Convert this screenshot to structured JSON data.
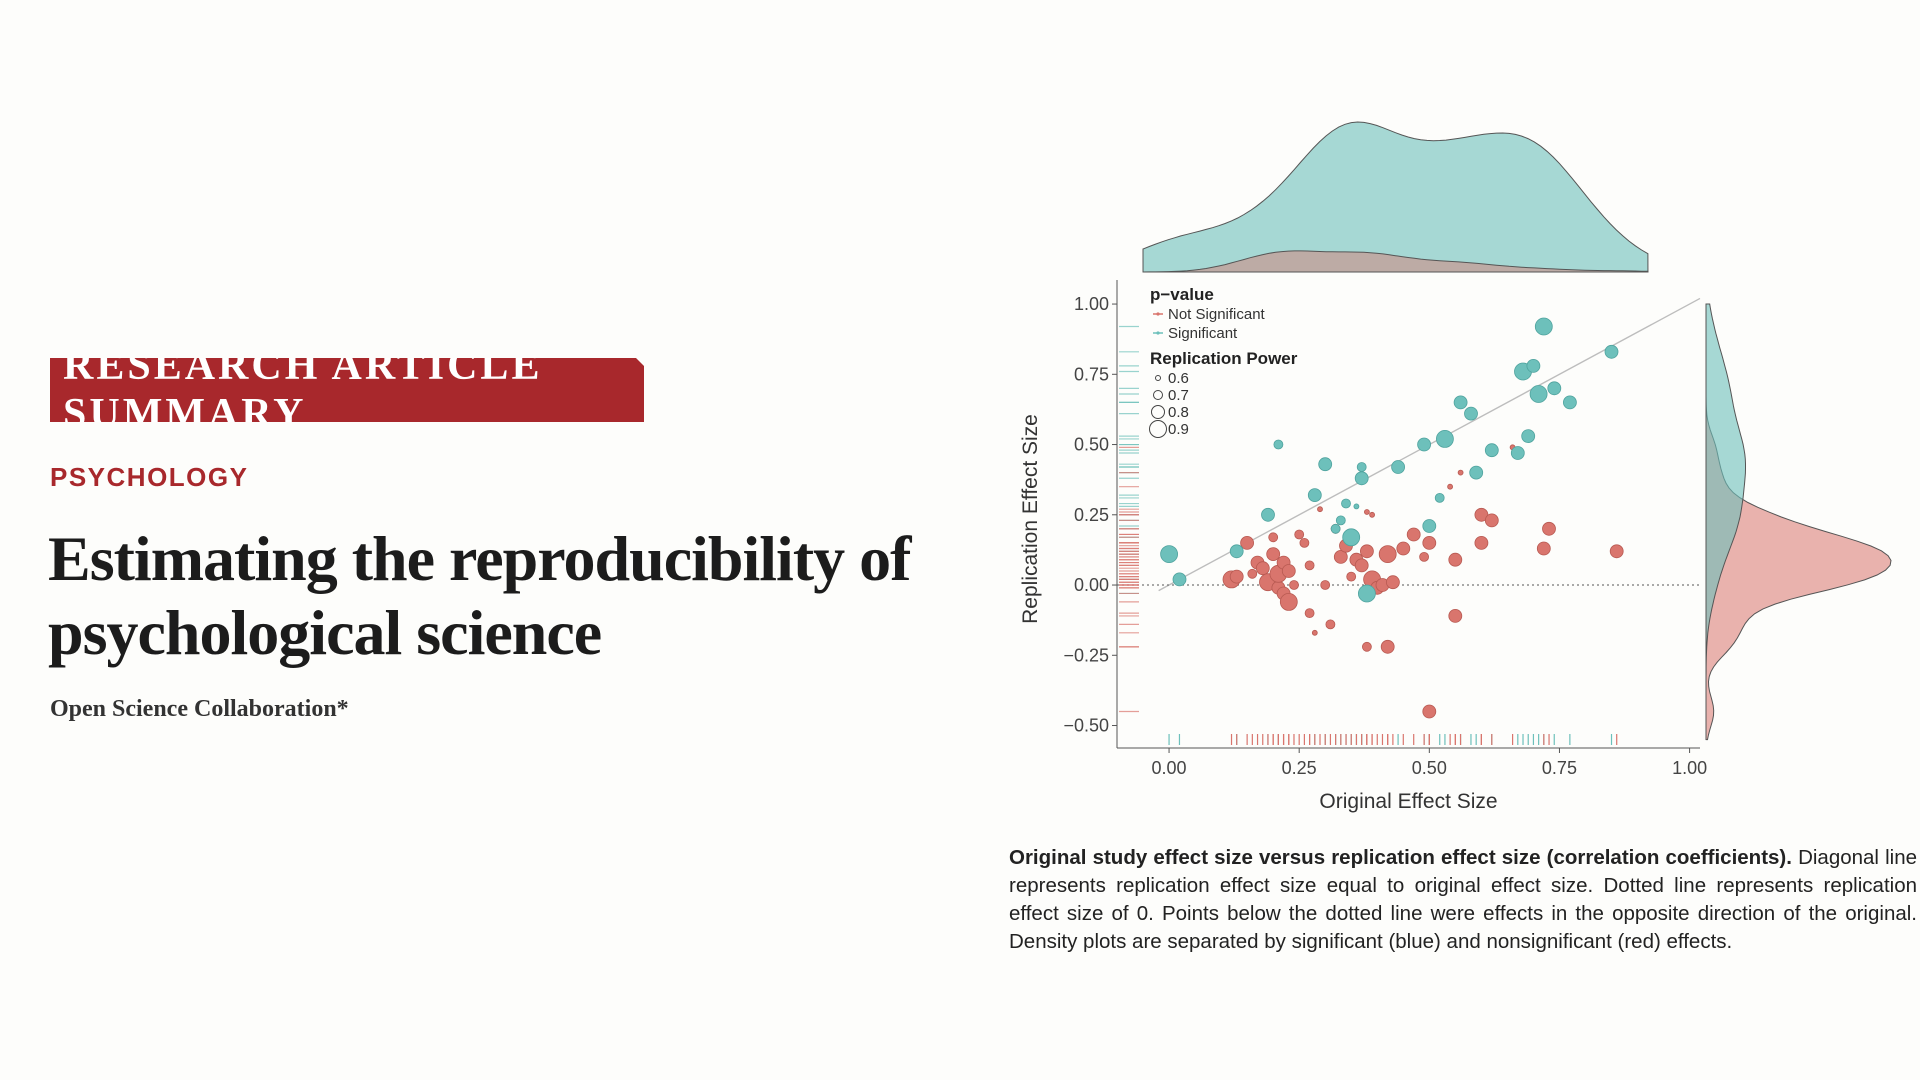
{
  "article": {
    "banner": "RESEARCH ARTICLE SUMMARY",
    "section": "PSYCHOLOGY",
    "title": "Estimating the reproducibility of psychological science",
    "author": "Open Science Collaboration*"
  },
  "caption": {
    "bold": "Original study effect size versus replication effect size (correlation coefficients).",
    "text": "Diagonal line represents replication effect size equal to original effect size. Dotted line represents replication effect size of 0. Points below the dotted line were effects in the opposite direction of the original. Density plots are separated by significant (blue) and nonsignificant (red) effects."
  },
  "chart_data": {
    "type": "scatter",
    "xlabel": "Original Effect Size",
    "ylabel": "Replication Effect Size",
    "xlim": [
      -0.1,
      1.02
    ],
    "ylim": [
      -0.58,
      1.05
    ],
    "xticks": [
      "0.00",
      "0.25",
      "0.50",
      "0.75",
      "1.00"
    ],
    "yticks": [
      "−0.50",
      "−0.25",
      "0.00",
      "0.25",
      "0.50",
      "0.75",
      "1.00"
    ],
    "colors": {
      "significant": "#6dc0bb",
      "not_significant": "#d9756d",
      "axis": "#555555"
    },
    "legend": {
      "pvalue_title": "p−value",
      "pvalue_items": [
        "Not Significant",
        "Significant"
      ],
      "power_title": "Replication Power",
      "power_items": [
        "0.6",
        "0.7",
        "0.8",
        "0.9"
      ],
      "placement": "top-left"
    },
    "reference_lines": [
      "diagonal y = x (solid)",
      "y = 0 (dotted)"
    ],
    "marginals": "density plots by significance, rug ticks on both axes",
    "series": [
      {
        "name": "Significant",
        "points": [
          [
            0.0,
            0.11,
            0.9
          ],
          [
            0.02,
            0.02,
            0.8
          ],
          [
            0.13,
            0.12,
            0.8
          ],
          [
            0.19,
            0.25,
            0.8
          ],
          [
            0.21,
            0.5,
            0.7
          ],
          [
            0.28,
            0.32,
            0.8
          ],
          [
            0.3,
            0.43,
            0.8
          ],
          [
            0.32,
            0.2,
            0.7
          ],
          [
            0.33,
            0.23,
            0.7
          ],
          [
            0.34,
            0.29,
            0.7
          ],
          [
            0.35,
            0.17,
            0.9
          ],
          [
            0.36,
            0.28,
            0.6
          ],
          [
            0.37,
            0.38,
            0.8
          ],
          [
            0.37,
            0.42,
            0.7
          ],
          [
            0.38,
            -0.03,
            0.9
          ],
          [
            0.44,
            0.42,
            0.8
          ],
          [
            0.49,
            0.5,
            0.8
          ],
          [
            0.5,
            0.21,
            0.8
          ],
          [
            0.52,
            0.31,
            0.7
          ],
          [
            0.53,
            0.52,
            0.9
          ],
          [
            0.56,
            0.65,
            0.8
          ],
          [
            0.58,
            0.61,
            0.8
          ],
          [
            0.59,
            0.4,
            0.8
          ],
          [
            0.62,
            0.48,
            0.8
          ],
          [
            0.67,
            0.47,
            0.8
          ],
          [
            0.68,
            0.76,
            0.9
          ],
          [
            0.69,
            0.53,
            0.8
          ],
          [
            0.7,
            0.78,
            0.8
          ],
          [
            0.71,
            0.68,
            0.9
          ],
          [
            0.72,
            0.92,
            0.9
          ],
          [
            0.74,
            0.7,
            0.8
          ],
          [
            0.77,
            0.65,
            0.8
          ],
          [
            0.85,
            0.83,
            0.8
          ]
        ]
      },
      {
        "name": "Not Significant",
        "points": [
          [
            0.12,
            0.02,
            0.9
          ],
          [
            0.13,
            0.03,
            0.8
          ],
          [
            0.15,
            0.15,
            0.8
          ],
          [
            0.16,
            0.04,
            0.7
          ],
          [
            0.17,
            0.08,
            0.8
          ],
          [
            0.18,
            0.06,
            0.8
          ],
          [
            0.19,
            0.01,
            0.9
          ],
          [
            0.2,
            0.11,
            0.8
          ],
          [
            0.2,
            0.17,
            0.7
          ],
          [
            0.21,
            -0.01,
            0.8
          ],
          [
            0.21,
            0.04,
            0.9
          ],
          [
            0.22,
            -0.03,
            0.8
          ],
          [
            0.22,
            0.08,
            0.8
          ],
          [
            0.23,
            -0.06,
            0.9
          ],
          [
            0.23,
            0.05,
            0.8
          ],
          [
            0.24,
            0.0,
            0.7
          ],
          [
            0.25,
            0.18,
            0.7
          ],
          [
            0.26,
            0.15,
            0.7
          ],
          [
            0.27,
            -0.1,
            0.7
          ],
          [
            0.27,
            0.07,
            0.7
          ],
          [
            0.28,
            -0.17,
            0.6
          ],
          [
            0.29,
            0.27,
            0.6
          ],
          [
            0.3,
            0.0,
            0.7
          ],
          [
            0.31,
            -0.14,
            0.7
          ],
          [
            0.32,
            0.2,
            0.7
          ],
          [
            0.33,
            0.1,
            0.8
          ],
          [
            0.34,
            0.14,
            0.8
          ],
          [
            0.35,
            0.03,
            0.7
          ],
          [
            0.36,
            0.09,
            0.8
          ],
          [
            0.37,
            0.07,
            0.8
          ],
          [
            0.38,
            0.12,
            0.8
          ],
          [
            0.38,
            -0.22,
            0.7
          ],
          [
            0.39,
            0.25,
            0.6
          ],
          [
            0.39,
            0.02,
            0.9
          ],
          [
            0.4,
            -0.01,
            0.8
          ],
          [
            0.41,
            0.0,
            0.8
          ],
          [
            0.42,
            -0.22,
            0.8
          ],
          [
            0.42,
            0.11,
            0.9
          ],
          [
            0.43,
            0.01,
            0.8
          ],
          [
            0.45,
            0.13,
            0.8
          ],
          [
            0.47,
            0.18,
            0.8
          ],
          [
            0.49,
            0.1,
            0.7
          ],
          [
            0.5,
            -0.45,
            0.8
          ],
          [
            0.5,
            0.15,
            0.8
          ],
          [
            0.55,
            -0.11,
            0.8
          ],
          [
            0.55,
            0.09,
            0.8
          ],
          [
            0.56,
            0.4,
            0.6
          ],
          [
            0.6,
            0.15,
            0.8
          ],
          [
            0.6,
            0.25,
            0.8
          ],
          [
            0.62,
            0.23,
            0.8
          ],
          [
            0.66,
            0.49,
            0.6
          ],
          [
            0.72,
            0.13,
            0.8
          ],
          [
            0.73,
            0.2,
            0.8
          ],
          [
            0.86,
            0.12,
            0.8
          ],
          [
            0.54,
            0.35,
            0.6
          ],
          [
            0.38,
            0.26,
            0.6
          ]
        ]
      }
    ]
  }
}
